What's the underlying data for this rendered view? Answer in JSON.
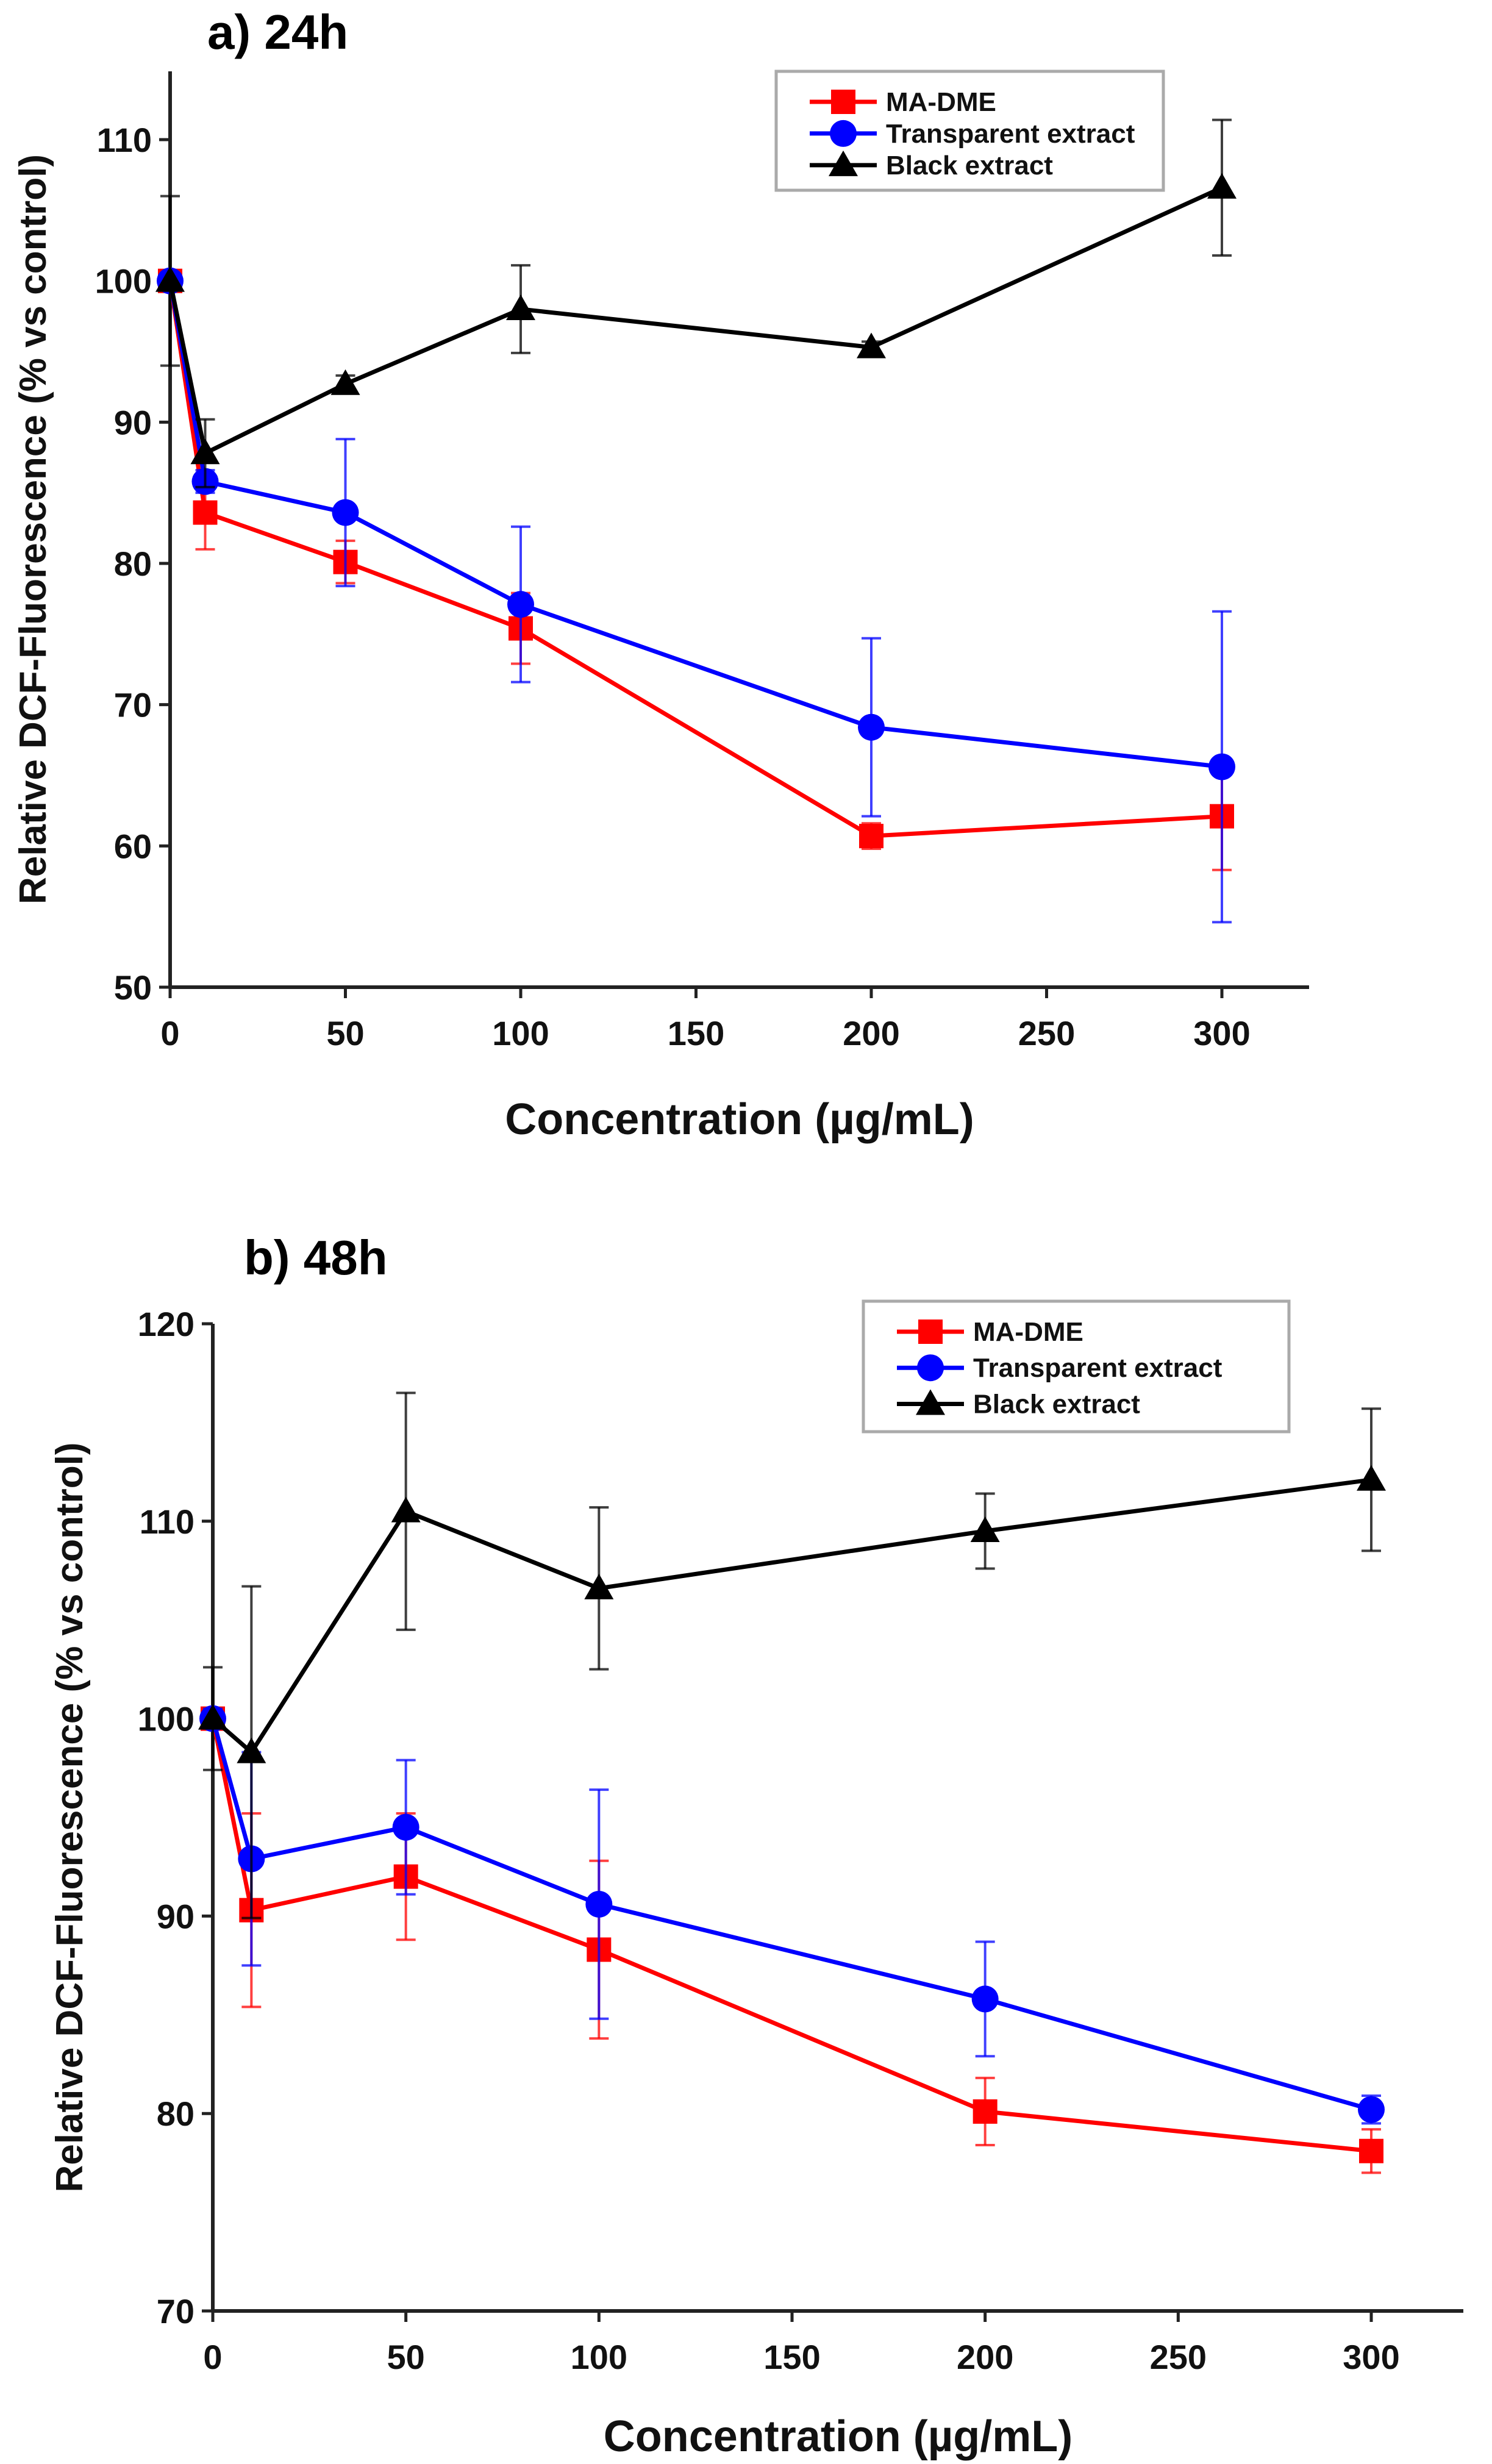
{
  "chart_data": [
    {
      "type": "line",
      "title": "a) 24h",
      "xlabel": "Concentration (µg/mL)",
      "ylabel": "Relative DCF-Fluorescence (% vs control)",
      "xlim": [
        0,
        325
      ],
      "ylim": [
        50,
        115
      ],
      "xticks": [
        0,
        50,
        100,
        150,
        200,
        250,
        300
      ],
      "yticks": [
        50,
        60,
        70,
        80,
        90,
        100,
        110
      ],
      "legend_position": "top-right",
      "x": [
        0,
        10,
        50,
        100,
        200,
        300
      ],
      "series": [
        {
          "name": "MA-DME",
          "color": "#ff0000",
          "marker": "square",
          "values": [
            100,
            83.6,
            80.1,
            75.4,
            60.7,
            62.1
          ],
          "errors": [
            0.5,
            2.6,
            1.5,
            2.5,
            0.9,
            3.8
          ]
        },
        {
          "name": "Transparent extract",
          "color": "#0000ff",
          "marker": "circle",
          "values": [
            100,
            85.8,
            83.6,
            77.1,
            68.4,
            65.6
          ],
          "errors": [
            0.5,
            0.8,
            5.2,
            5.5,
            6.3,
            11.0
          ]
        },
        {
          "name": "Black extract",
          "color": "#000000",
          "marker": "triangle",
          "values": [
            100,
            87.8,
            92.7,
            98.0,
            95.3,
            106.6
          ],
          "errors": [
            6.0,
            2.4,
            0.6,
            3.1,
            0.4,
            4.8
          ]
        }
      ]
    },
    {
      "type": "line",
      "title": "b) 48h",
      "xlabel": "Concentration (µg/mL)",
      "ylabel": "Relative DCF-Fluorescence (% vs control)",
      "xlim": [
        0,
        325
      ],
      "ylim": [
        70,
        120
      ],
      "xticks": [
        0,
        50,
        100,
        150,
        200,
        250,
        300
      ],
      "yticks": [
        70,
        80,
        90,
        100,
        110,
        120
      ],
      "legend_position": "top-right",
      "x": [
        0,
        10,
        50,
        100,
        200,
        300
      ],
      "series": [
        {
          "name": "MA-DME",
          "color": "#ff0000",
          "marker": "square",
          "values": [
            100,
            90.3,
            92.0,
            88.3,
            80.1,
            78.1
          ],
          "errors": [
            0.5,
            4.9,
            3.2,
            4.5,
            1.7,
            1.1
          ]
        },
        {
          "name": "Transparent extract",
          "color": "#0000ff",
          "marker": "circle",
          "values": [
            100,
            92.9,
            94.5,
            90.6,
            85.8,
            80.2
          ],
          "errors": [
            0.5,
            5.4,
            3.4,
            5.8,
            2.9,
            0.7
          ]
        },
        {
          "name": "Black extract",
          "color": "#000000",
          "marker": "triangle",
          "values": [
            100,
            98.3,
            110.5,
            106.6,
            109.5,
            112.1
          ],
          "errors": [
            2.6,
            8.4,
            6.0,
            4.1,
            1.9,
            3.6
          ]
        }
      ]
    }
  ]
}
